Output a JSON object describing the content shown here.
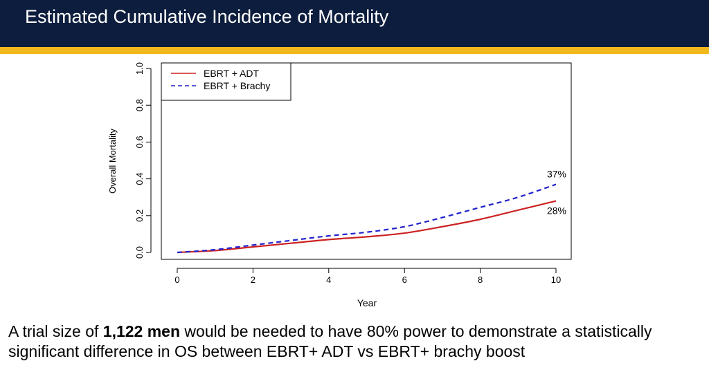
{
  "slide": {
    "title": "Estimated Cumulative Incidence of Mortality",
    "colors": {
      "header_bg": "#0c1d3d",
      "accent_bar": "#f2b91e"
    }
  },
  "caption": {
    "part1": "A trial size of ",
    "bold": "1,122 men",
    "part2": " would be needed to have 80% power to demonstrate a statistically significant difference in OS between EBRT+ ADT vs EBRT+ brachy boost"
  },
  "chart_data": {
    "type": "line",
    "title": "",
    "xlabel": "Year",
    "ylabel": "Overall Mortality",
    "xlim": [
      0,
      10
    ],
    "ylim": [
      0,
      1
    ],
    "xticks": [
      "0",
      "2",
      "4",
      "6",
      "8",
      "10"
    ],
    "yticks": [
      "0.0",
      "0.2",
      "0.4",
      "0.6",
      "0.8",
      "1.0"
    ],
    "grid": false,
    "legend_position": "top-left",
    "series": [
      {
        "name": "EBRT + ADT",
        "color": "#cc2222",
        "dash": "solid",
        "x": [
          0,
          1,
          2,
          3,
          4,
          5,
          6,
          7,
          8,
          9,
          10
        ],
        "y": [
          0.0,
          0.01,
          0.03,
          0.05,
          0.07,
          0.085,
          0.105,
          0.14,
          0.18,
          0.23,
          0.28
        ]
      },
      {
        "name": "EBRT + Brachy",
        "color": "#2222cc",
        "dash": "dashed",
        "x": [
          0,
          1,
          2,
          3,
          4,
          5,
          6,
          7,
          8,
          9,
          10
        ],
        "y": [
          0.0,
          0.015,
          0.04,
          0.065,
          0.09,
          0.11,
          0.14,
          0.19,
          0.245,
          0.3,
          0.37
        ]
      }
    ],
    "annotations": [
      {
        "text": "37%",
        "series": "EBRT + Brachy",
        "x": 10,
        "y": 0.37
      },
      {
        "text": "28%",
        "series": "EBRT + ADT",
        "x": 10,
        "y": 0.28
      }
    ]
  }
}
